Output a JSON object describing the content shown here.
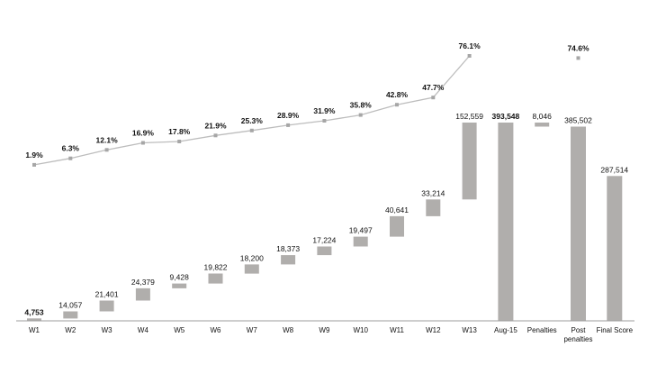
{
  "chart_data": {
    "type": "waterfall-with-line",
    "title": "",
    "xlabel": "",
    "ylabel": "",
    "categories": [
      "W1",
      "W2",
      "W3",
      "W4",
      "W5",
      "W6",
      "W7",
      "W8",
      "W9",
      "W10",
      "W11",
      "W12",
      "W13",
      "Aug-15",
      "Penalties",
      "Post penalties",
      "Final Score"
    ],
    "bar_values": [
      4753,
      14057,
      21401,
      24379,
      9428,
      19822,
      18200,
      18373,
      17224,
      19497,
      40641,
      33214,
      152559,
      393548,
      8046,
      385502,
      287514
    ],
    "bar_labels": [
      "4,753",
      "14,057",
      "21,401",
      "24,379",
      "9,428",
      "19,822",
      "18,200",
      "18,373",
      "17,224",
      "19,497",
      "40,641",
      "33,214",
      "152,559",
      "393,548",
      "8,046",
      "385,502",
      "287,514"
    ],
    "bar_kind": [
      "inc",
      "inc",
      "inc",
      "inc",
      "inc",
      "inc",
      "inc",
      "inc",
      "inc",
      "inc",
      "inc",
      "inc",
      "inc",
      "total",
      "dec",
      "total",
      "total"
    ],
    "bold_labels": [
      0,
      13
    ],
    "line_categories": [
      "W1",
      "W2",
      "W3",
      "W4",
      "W5",
      "W6",
      "W7",
      "W8",
      "W9",
      "W10",
      "W11",
      "W12",
      "W13"
    ],
    "line_values": [
      1.9,
      6.3,
      12.1,
      16.9,
      17.8,
      21.9,
      25.3,
      28.9,
      31.9,
      35.8,
      42.8,
      47.7,
      76.1
    ],
    "line_labels": [
      "1.9%",
      "6.3%",
      "12.1%",
      "16.9%",
      "17.8%",
      "21.9%",
      "25.3%",
      "28.9%",
      "31.9%",
      "35.8%",
      "42.8%",
      "47.7%",
      "76.1%"
    ],
    "extra_point": {
      "category": "Post penalties",
      "value": 74.6,
      "label": "74.6%"
    },
    "colors": {
      "bar": "#b0aeac",
      "line": "#bdbdbd",
      "marker": "#a6a6a6",
      "axis": "#9e9e9e"
    }
  }
}
